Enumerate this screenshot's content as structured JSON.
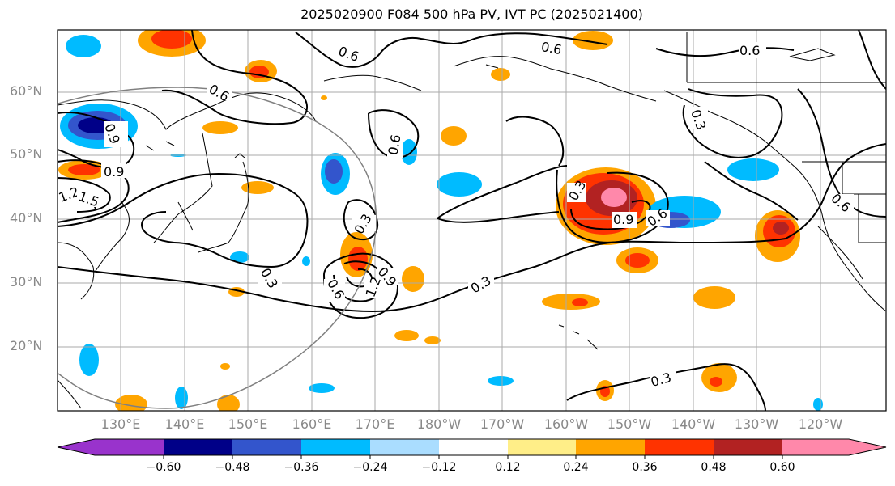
{
  "title": "2025020900 F084 500 hPa PV, IVT PC (2025021400)",
  "latitude_labels": [
    "60°N",
    "50°N",
    "40°N",
    "30°N",
    "20°N"
  ],
  "longitude_labels": [
    "130°E",
    "140°E",
    "150°E",
    "160°E",
    "170°E",
    "180°W",
    "170°W",
    "160°W",
    "150°W",
    "140°W",
    "130°W",
    "120°W"
  ],
  "contour_labels": [
    "0.6",
    "0.6",
    "0.6",
    "0.6",
    "0.9",
    "0.9",
    "1.2",
    "1.5",
    "0.3",
    "0.3",
    "0.6",
    "0.9",
    "1.2",
    "0.3",
    "0.3",
    "0.9",
    "0.6",
    "0.3",
    "0.3",
    "0.6",
    "0.6"
  ],
  "colorbar": {
    "tick_labels": [
      "−0.60",
      "−0.48",
      "−0.36",
      "−0.24",
      "−0.12",
      "0.12",
      "0.24",
      "0.36",
      "0.48",
      "0.60"
    ],
    "colors": [
      "#9933cc",
      "#000088",
      "#3355cc",
      "#00bbff",
      "#aaddff",
      "#ffffff",
      "#ffee88",
      "#ffa500",
      "#ff3300",
      "#b22222",
      "#ff88aa"
    ]
  },
  "colors": {
    "contour": "#000000",
    "grid": "#aaaaaa",
    "circle": "#808080",
    "axis_label": "#888888"
  }
}
